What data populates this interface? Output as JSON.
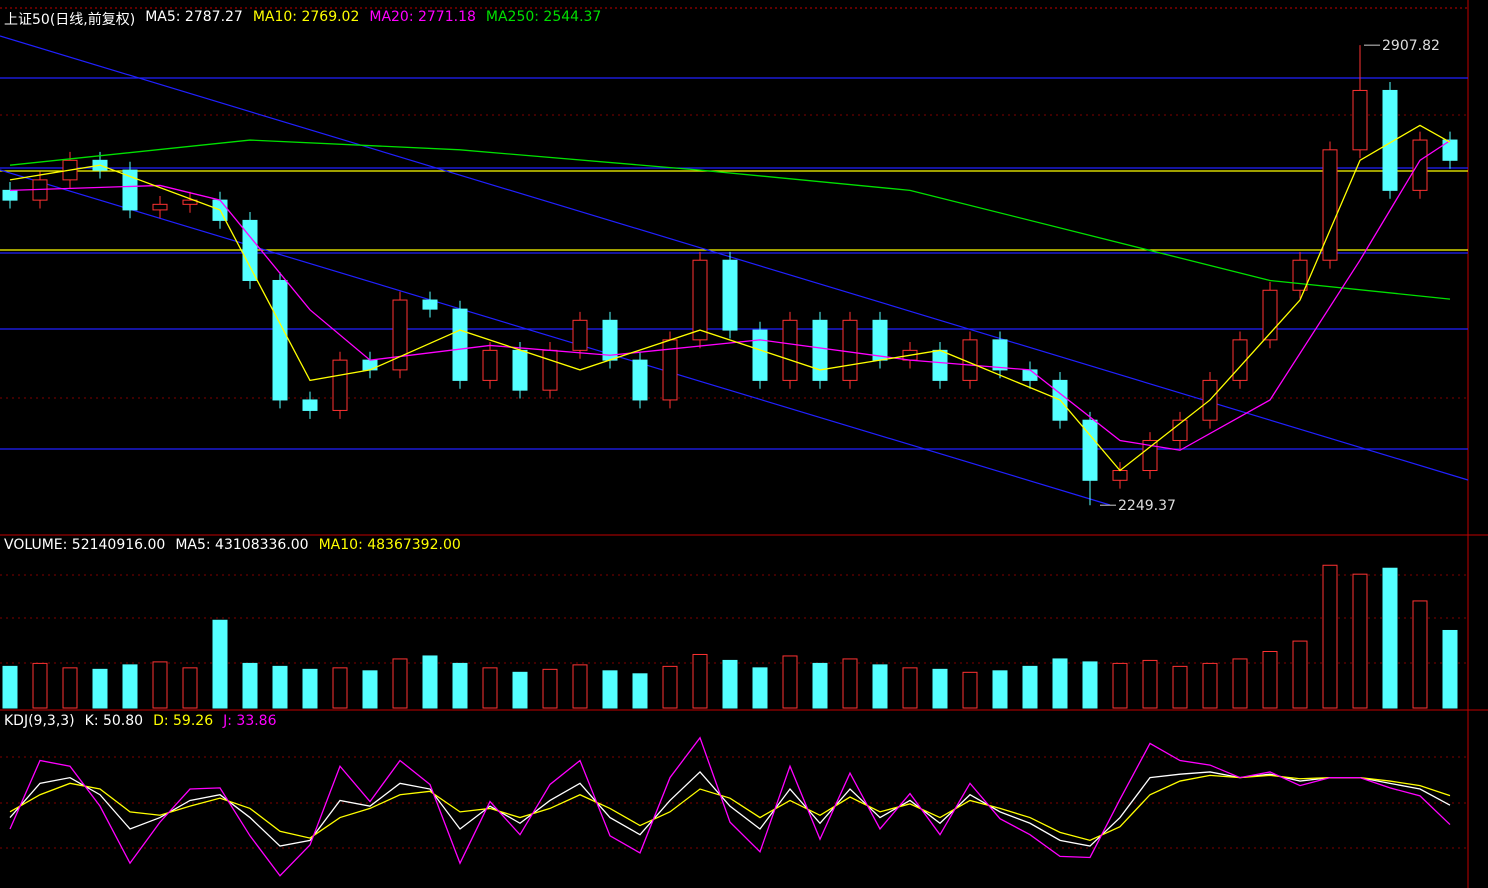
{
  "chart_data": [
    {
      "type": "candlestick",
      "title": "上证50(日线,前复权)",
      "legend": [
        {
          "text": "MA5: 2787.27",
          "color": "#ffffff"
        },
        {
          "text": "MA10: 2769.02",
          "color": "#ffff00"
        },
        {
          "text": "MA20: 2771.18",
          "color": "#ff00ff"
        },
        {
          "text": "MA250: 2544.37",
          "color": "#00e000"
        }
      ],
      "up_color": "#ff3232",
      "down_color": "#54ffff",
      "ylim": [
        2211,
        2961
      ],
      "open": [
        2700,
        2686,
        2715,
        2743,
        2729,
        2672,
        2680,
        2686,
        2657,
        2571,
        2400,
        2385,
        2457,
        2443,
        2543,
        2530,
        2428,
        2471,
        2414,
        2471,
        2514,
        2457,
        2400,
        2486,
        2600,
        2500,
        2428,
        2514,
        2428,
        2514,
        2457,
        2471,
        2428,
        2486,
        2443,
        2428,
        2371,
        2285,
        2299,
        2342,
        2371,
        2428,
        2486,
        2557,
        2600,
        2758,
        2843,
        2700,
        2772
      ],
      "close": [
        2686,
        2715,
        2743,
        2729,
        2672,
        2680,
        2686,
        2657,
        2571,
        2400,
        2385,
        2457,
        2443,
        2543,
        2530,
        2428,
        2471,
        2414,
        2471,
        2514,
        2457,
        2400,
        2486,
        2600,
        2500,
        2428,
        2514,
        2428,
        2514,
        2457,
        2471,
        2428,
        2486,
        2443,
        2428,
        2371,
        2285,
        2299,
        2342,
        2371,
        2428,
        2486,
        2557,
        2600,
        2758,
        2843,
        2700,
        2772,
        2743
      ],
      "high": [
        2712,
        2727,
        2755,
        2755,
        2741,
        2692,
        2698,
        2698,
        2669,
        2583,
        2412,
        2469,
        2469,
        2555,
        2555,
        2542,
        2483,
        2483,
        2483,
        2526,
        2526,
        2469,
        2498,
        2612,
        2612,
        2512,
        2526,
        2526,
        2526,
        2526,
        2483,
        2483,
        2498,
        2498,
        2455,
        2440,
        2383,
        2311,
        2354,
        2383,
        2440,
        2498,
        2569,
        2612,
        2770,
        2907.82,
        2855,
        2784,
        2784
      ],
      "low": [
        2674,
        2674,
        2703,
        2717,
        2660,
        2660,
        2668,
        2645,
        2559,
        2388,
        2373,
        2373,
        2431,
        2431,
        2518,
        2416,
        2416,
        2402,
        2402,
        2459,
        2445,
        2388,
        2388,
        2474,
        2488,
        2416,
        2416,
        2416,
        2416,
        2445,
        2445,
        2416,
        2416,
        2431,
        2416,
        2359,
        2249.37,
        2273,
        2287,
        2330,
        2359,
        2416,
        2474,
        2545,
        2588,
        2746,
        2688,
        2688,
        2731
      ],
      "lines": [
        {
          "color": "#00e000",
          "x": [
            0,
            8,
            15,
            23,
            30,
            38,
            42,
            48
          ],
          "values": [
            2736,
            2772,
            2758,
            2729,
            2700,
            2614,
            2571,
            2544.37
          ]
        },
        {
          "color": "#ff00ff",
          "x": [
            0,
            5,
            7,
            10,
            12,
            16,
            20,
            25,
            30,
            34,
            37,
            39,
            42,
            45,
            47,
            48
          ],
          "values": [
            2700,
            2707,
            2686,
            2529,
            2457,
            2478,
            2464,
            2486,
            2457,
            2443,
            2342,
            2328,
            2400,
            2600,
            2743,
            2771.18
          ]
        },
        {
          "color": "#ffff00",
          "x": [
            0,
            3,
            7,
            10,
            12,
            15,
            19,
            23,
            27,
            31,
            35,
            37,
            40,
            43,
            45,
            47,
            48
          ],
          "values": [
            2715,
            2736,
            2672,
            2428,
            2443,
            2500,
            2443,
            2500,
            2443,
            2471,
            2400,
            2299,
            2400,
            2543,
            2743,
            2793,
            2769.02
          ]
        }
      ]
    },
    {
      "type": "volume",
      "legend": [
        {
          "text": "VOLUME: 52140916.00",
          "color": "#ffffff"
        },
        {
          "text": "MA5: 43108336.00",
          "color": "#ffffff"
        },
        {
          "text": "MA10: 48367392.00",
          "color": "#ffff00"
        }
      ],
      "ylim": [
        0,
        115000000
      ],
      "values": [
        28000000,
        30000000,
        27000000,
        26000000,
        29000000,
        31000000,
        27000000,
        59000000,
        30000000,
        28000000,
        26000000,
        27000000,
        25000000,
        33000000,
        35000000,
        30000000,
        27000000,
        24000000,
        26000000,
        29000000,
        25000000,
        23000000,
        28000000,
        36000000,
        32000000,
        27000000,
        35000000,
        30000000,
        33000000,
        29000000,
        27000000,
        26000000,
        24000000,
        25000000,
        28000000,
        33000000,
        31000000,
        30000000,
        32000000,
        28000000,
        30000000,
        33000000,
        38000000,
        45000000,
        96000000,
        90000000,
        94000000,
        72000000,
        52140916
      ]
    },
    {
      "type": "kdj",
      "legend": [
        {
          "text": "KDJ(9,3,3)",
          "color": "#ffffff"
        },
        {
          "text": "K: 50.80",
          "color": "#ffffff"
        },
        {
          "text": "D: 59.26",
          "color": "#ffff00"
        },
        {
          "text": "J: 33.86",
          "color": "#ff00ff"
        }
      ],
      "ylim": [
        -20,
        115
      ],
      "series": [
        {
          "color": "#ffffff",
          "values": [
            40,
            70,
            75,
            60,
            30,
            40,
            55,
            60,
            40,
            15,
            20,
            55,
            50,
            70,
            65,
            30,
            50,
            35,
            55,
            70,
            40,
            25,
            55,
            80,
            50,
            30,
            65,
            35,
            65,
            40,
            55,
            35,
            60,
            45,
            35,
            20,
            15,
            40,
            75,
            78,
            80,
            75,
            78,
            72,
            75,
            75,
            70,
            65,
            50.8
          ]
        },
        {
          "color": "#ffff00",
          "values": [
            45,
            60,
            70,
            65,
            45,
            42,
            50,
            57,
            48,
            28,
            22,
            40,
            48,
            60,
            63,
            45,
            48,
            40,
            48,
            60,
            48,
            33,
            45,
            65,
            57,
            40,
            55,
            42,
            58,
            45,
            52,
            40,
            55,
            48,
            40,
            27,
            20,
            32,
            60,
            72,
            77,
            75,
            77,
            74,
            75,
            75,
            72,
            68,
            59.26
          ]
        },
        {
          "color": "#ff00ff",
          "values": [
            30,
            90,
            85,
            50,
            0,
            36,
            65,
            66,
            24,
            -11,
            16,
            85,
            54,
            90,
            69,
            0,
            54,
            25,
            69,
            90,
            24,
            9,
            75,
            110,
            36,
            10,
            85,
            21,
            79,
            30,
            61,
            25,
            70,
            39,
            25,
            6,
            5,
            56,
            105,
            90,
            86,
            75,
            80,
            68,
            75,
            75,
            66,
            59,
            33.86
          ]
        }
      ]
    }
  ]
}
